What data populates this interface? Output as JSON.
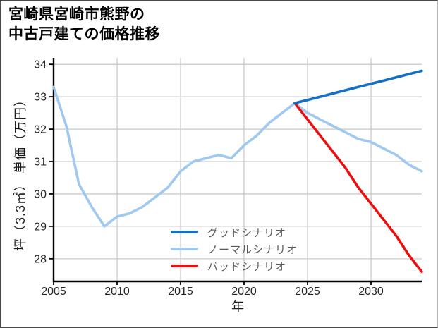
{
  "figure": {
    "title": "宮崎県宮崎市熊野の\n中古戸建ての価格推移"
  },
  "chart_data": {
    "type": "line",
    "title": "宮崎県宮崎市熊野の中古戸建ての価格推移",
    "xlabel": "年",
    "ylabel": "坪（3.3㎡） 単価（万円）",
    "xlim": [
      2005,
      2034
    ],
    "ylim": [
      27.3,
      34.2
    ],
    "xticks": [
      2005,
      2010,
      2015,
      2020,
      2025,
      2030
    ],
    "yticks": [
      28,
      29,
      30,
      31,
      32,
      33,
      34
    ],
    "grid": true,
    "grid_color": "#cccccc",
    "legend_position": "lower center",
    "series": [
      {
        "name": "グッドシナリオ",
        "color": "#1270c5",
        "x": [
          2024,
          2025,
          2026,
          2027,
          2028,
          2029,
          2030,
          2031,
          2032,
          2033,
          2034
        ],
        "values": [
          32.8,
          32.9,
          33.0,
          33.1,
          33.2,
          33.3,
          33.4,
          33.5,
          33.6,
          33.7,
          33.8
        ]
      },
      {
        "name": "ノーマルシナリオ",
        "color": "#9fc9f0",
        "x": [
          2005,
          2006,
          2007,
          2008,
          2009,
          2010,
          2011,
          2012,
          2013,
          2014,
          2015,
          2016,
          2017,
          2018,
          2019,
          2020,
          2021,
          2022,
          2023,
          2024,
          2025,
          2026,
          2027,
          2028,
          2029,
          2030,
          2031,
          2032,
          2033,
          2034
        ],
        "values": [
          33.3,
          32.1,
          30.3,
          29.6,
          29.0,
          29.3,
          29.4,
          29.6,
          29.9,
          30.2,
          30.7,
          31.0,
          31.1,
          31.2,
          31.1,
          31.5,
          31.8,
          32.2,
          32.5,
          32.8,
          32.5,
          32.3,
          32.1,
          31.9,
          31.7,
          31.6,
          31.4,
          31.2,
          30.9,
          30.7
        ]
      },
      {
        "name": "バッドシナリオ",
        "color": "#ee0c0c",
        "x": [
          2024,
          2025,
          2026,
          2027,
          2028,
          2029,
          2030,
          2031,
          2032,
          2033,
          2034
        ],
        "values": [
          32.8,
          32.3,
          31.8,
          31.3,
          30.8,
          30.2,
          29.7,
          29.2,
          28.7,
          28.1,
          27.6
        ]
      }
    ]
  }
}
